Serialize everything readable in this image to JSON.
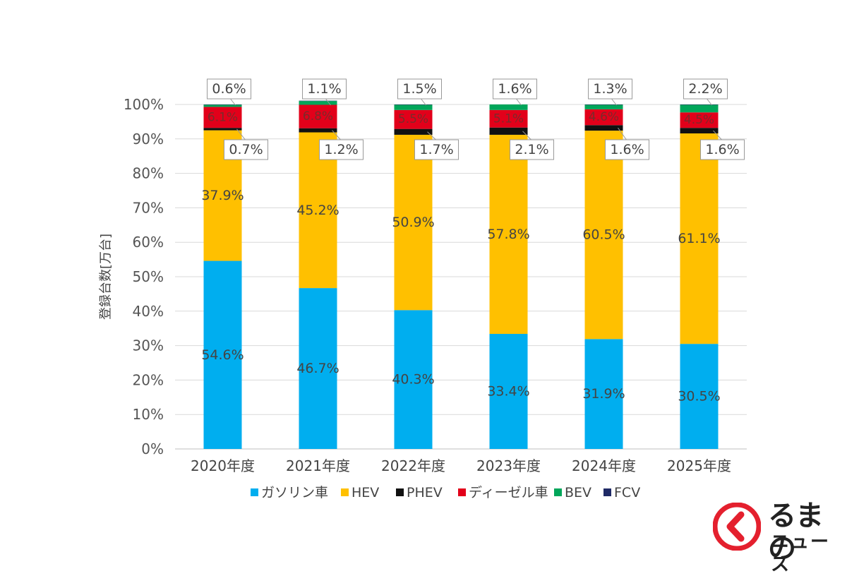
{
  "chart_data": {
    "type": "bar",
    "stacked": true,
    "percent": true,
    "categories": [
      "2020年度",
      "2021年度",
      "2022年度",
      "2023年度",
      "2024年度",
      "2025年度"
    ],
    "series": [
      {
        "name": "ガソリン車",
        "color": "#00AEEF",
        "values": [
          54.6,
          46.7,
          40.3,
          33.4,
          31.9,
          30.5
        ]
      },
      {
        "name": "HEV",
        "color": "#FFC000",
        "values": [
          37.9,
          45.2,
          50.9,
          57.8,
          60.5,
          61.1
        ]
      },
      {
        "name": "PHEV",
        "color": "#111111",
        "values": [
          0.7,
          1.2,
          1.7,
          2.1,
          1.6,
          1.6
        ]
      },
      {
        "name": "ディーゼル車",
        "color": "#E2001A",
        "values": [
          6.1,
          6.8,
          5.5,
          5.1,
          4.6,
          4.5
        ]
      },
      {
        "name": "BEV",
        "color": "#00A65A",
        "values": [
          0.6,
          1.1,
          1.5,
          1.6,
          1.3,
          2.2
        ]
      },
      {
        "name": "FCV",
        "color": "#1F2A66",
        "values": [
          0.1,
          0.1,
          0.1,
          0.0,
          0.1,
          0.1
        ]
      }
    ],
    "ylabel": "登録台数[万台]",
    "xlabel": "",
    "ylim": [
      0,
      100
    ],
    "yticks": [
      "0%",
      "10%",
      "20%",
      "30%",
      "40%",
      "50%",
      "60%",
      "70%",
      "80%",
      "90%",
      "100%"
    ],
    "grid": true,
    "legend_position": "bottom",
    "data_labels": {
      "inside": {
        "ガソリン車": [
          "54.6%",
          "46.7%",
          "40.3%",
          "33.4%",
          "31.9%",
          "30.5%"
        ],
        "HEV": [
          "37.9%",
          "45.2%",
          "50.9%",
          "57.8%",
          "60.5%",
          "61.1%"
        ],
        "ディーゼル車": [
          "6.1%",
          "6.8%",
          "5.5%",
          "5.1%",
          "4.6%",
          "4.5%"
        ]
      },
      "callouts": {
        "BEV": [
          "0.6%",
          "1.1%",
          "1.5%",
          "1.6%",
          "1.3%",
          "2.2%"
        ],
        "PHEV": [
          "0.7%",
          "1.2%",
          "1.7%",
          "2.1%",
          "1.6%",
          "1.6%"
        ]
      }
    }
  },
  "logo": {
    "line1": "るまの",
    "line2": "ニュース",
    "color": "#E4202E"
  }
}
